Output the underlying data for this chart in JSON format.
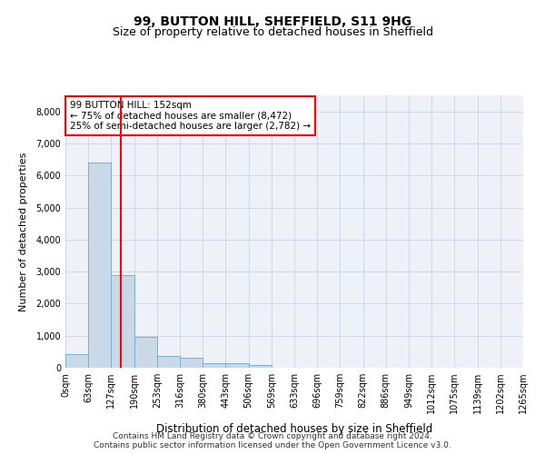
{
  "title1": "99, BUTTON HILL, SHEFFIELD, S11 9HG",
  "title2": "Size of property relative to detached houses in Sheffield",
  "xlabel": "Distribution of detached houses by size in Sheffield",
  "ylabel": "Number of detached properties",
  "footer1": "Contains HM Land Registry data © Crown copyright and database right 2024.",
  "footer2": "Contains public sector information licensed under the Open Government Licence v3.0.",
  "bin_labels": [
    "0sqm",
    "63sqm",
    "127sqm",
    "190sqm",
    "253sqm",
    "316sqm",
    "380sqm",
    "443sqm",
    "506sqm",
    "569sqm",
    "633sqm",
    "696sqm",
    "759sqm",
    "822sqm",
    "886sqm",
    "949sqm",
    "1012sqm",
    "1075sqm",
    "1139sqm",
    "1202sqm",
    "1265sqm"
  ],
  "bar_values": [
    430,
    6400,
    2900,
    950,
    380,
    310,
    150,
    130,
    80,
    0,
    0,
    0,
    0,
    0,
    0,
    0,
    0,
    0,
    0,
    0
  ],
  "bar_color": "#c9d9e8",
  "bar_edge_color": "#7bafd4",
  "property_line_bin": 2.41,
  "vline_color": "red",
  "annotation_text": "99 BUTTON HILL: 152sqm\n← 75% of detached houses are smaller (8,472)\n25% of semi-detached houses are larger (2,782) →",
  "annotation_box_color": "white",
  "annotation_box_edge_color": "red",
  "ylim": [
    0,
    8500
  ],
  "yticks": [
    0,
    1000,
    2000,
    3000,
    4000,
    5000,
    6000,
    7000,
    8000
  ],
  "grid_color": "#d0d8e8",
  "bg_color": "#eef2f8"
}
